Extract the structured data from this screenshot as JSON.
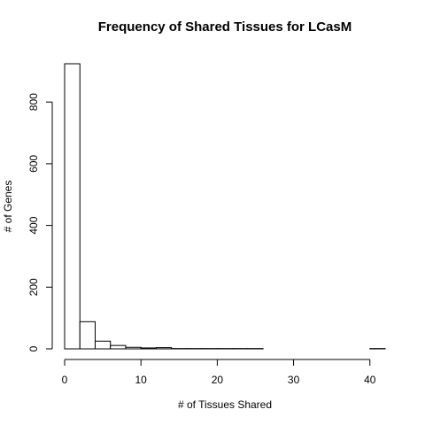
{
  "chart_data": {
    "type": "bar",
    "title": "Frequency of Shared Tissues for LCasM",
    "xlabel": "# of Tissues Shared",
    "ylabel": "# of Genes",
    "bin_width": 2,
    "bins": [
      {
        "start": 0,
        "end": 2,
        "count": 924
      },
      {
        "start": 2,
        "end": 4,
        "count": 88
      },
      {
        "start": 4,
        "end": 6,
        "count": 25
      },
      {
        "start": 6,
        "end": 8,
        "count": 11
      },
      {
        "start": 8,
        "end": 10,
        "count": 5
      },
      {
        "start": 10,
        "end": 12,
        "count": 3
      },
      {
        "start": 12,
        "end": 14,
        "count": 4
      },
      {
        "start": 14,
        "end": 16,
        "count": 1
      },
      {
        "start": 16,
        "end": 18,
        "count": 1
      },
      {
        "start": 18,
        "end": 20,
        "count": 1
      },
      {
        "start": 20,
        "end": 22,
        "count": 1
      },
      {
        "start": 22,
        "end": 24,
        "count": 1
      },
      {
        "start": 24,
        "end": 26,
        "count": 1
      },
      {
        "start": 26,
        "end": 28,
        "count": 0
      },
      {
        "start": 28,
        "end": 30,
        "count": 0
      },
      {
        "start": 30,
        "end": 32,
        "count": 0
      },
      {
        "start": 32,
        "end": 34,
        "count": 0
      },
      {
        "start": 34,
        "end": 36,
        "count": 0
      },
      {
        "start": 36,
        "end": 38,
        "count": 0
      },
      {
        "start": 38,
        "end": 40,
        "count": 0
      },
      {
        "start": 40,
        "end": 42,
        "count": 1
      }
    ],
    "x_ticks": [
      0,
      10,
      20,
      30,
      40
    ],
    "y_ticks": [
      0,
      200,
      400,
      600,
      800
    ],
    "xlim": [
      0,
      42
    ],
    "ylim": [
      0,
      924
    ],
    "grid": false,
    "legend": "none"
  }
}
